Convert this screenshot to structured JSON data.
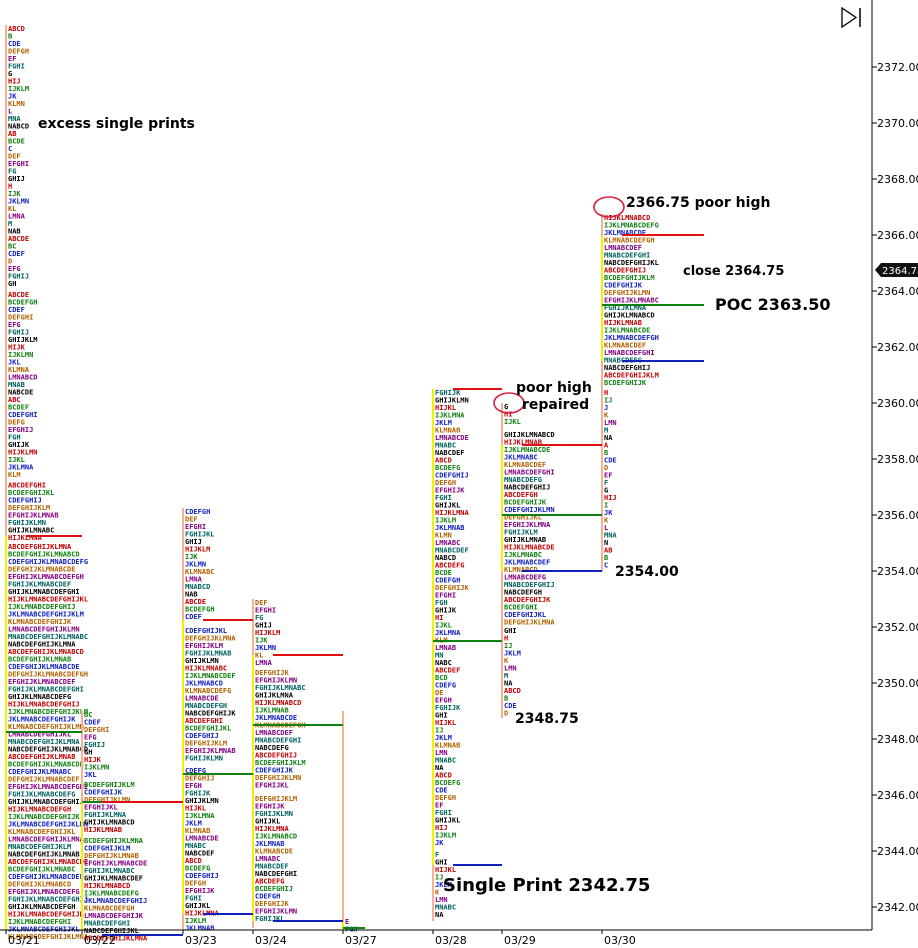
{
  "chart_data": {
    "type": "market-profile",
    "title": "",
    "xlabel": "",
    "ylabel": "",
    "ylim": [
      2340.7,
      2373.5
    ],
    "y_ticks": [
      2342,
      2344,
      2346,
      2348,
      2350,
      2352,
      2354,
      2356,
      2358,
      2360,
      2362,
      2364,
      2366,
      2368,
      2370,
      2372
    ],
    "y_tick_labels": [
      "2342.00",
      "2344.00",
      "2346.00",
      "2348.00",
      "2350.00",
      "2352.00",
      "2354.00",
      "2356.00",
      "2358.00",
      "2360.00",
      "2362.00",
      "2364.00",
      "2366.00",
      "2368.00",
      "2370.00",
      "2372.00"
    ],
    "current_price": 2364.75,
    "current_price_label": "2364.75",
    "dates": [
      "03/21",
      "03/22",
      "03/23",
      "03/24",
      "03/27",
      "03/28",
      "03/29",
      "03/30"
    ],
    "colors": {
      "red": "#e01010",
      "blue": "#1020c0",
      "green": "#108010",
      "yellow": "#f5f000",
      "lightgreen": "#90ee90",
      "salmon": "#f8b090",
      "annot_circle": "#d81e3c"
    },
    "sessions": [
      {
        "date": "03/21",
        "low": 2341.0,
        "high": 2373.5,
        "poc": 2348.25,
        "va_high": 2355.25,
        "va_low": 2340.7,
        "hist": [
          {
            "y0": 2340.7,
            "y1": 2355.0,
            "w": 95
          },
          {
            "y0": 2355.0,
            "y1": 2357.2,
            "w": 60
          },
          {
            "y0": 2357.2,
            "y1": 2364.0,
            "w": 30
          },
          {
            "y0": 2364.0,
            "y1": 2373.5,
            "w": 18
          }
        ]
      },
      {
        "date": "03/22",
        "low": 2340.7,
        "high": 2349.0,
        "poc": 2345.75,
        "va_high": 2345.75,
        "va_low": 2340.7,
        "hist": [
          {
            "y0": 2340.7,
            "y1": 2344.5,
            "w": 75
          },
          {
            "y0": 2344.5,
            "y1": 2346.5,
            "w": 60
          },
          {
            "y0": 2346.5,
            "y1": 2349.0,
            "w": 25
          }
        ]
      },
      {
        "date": "03/23",
        "low": 2341.0,
        "high": 2356.25,
        "poc": 2346.75,
        "va_high": 2352.25,
        "va_low": 2341.75,
        "hist": [
          {
            "y0": 2341.0,
            "y1": 2347.0,
            "w": 35
          },
          {
            "y0": 2347.0,
            "y1": 2352.0,
            "w": 55
          },
          {
            "y0": 2352.0,
            "y1": 2356.25,
            "w": 30
          }
        ]
      },
      {
        "date": "03/24",
        "low": 2341.25,
        "high": 2353.0,
        "poc": 2348.5,
        "va_high": 2351.0,
        "va_low": 2341.5,
        "hist": [
          {
            "y0": 2341.25,
            "y1": 2346.0,
            "w": 45
          },
          {
            "y0": 2346.0,
            "y1": 2350.5,
            "w": 55
          },
          {
            "y0": 2350.5,
            "y1": 2353.0,
            "w": 25
          }
        ]
      },
      {
        "date": "03/27",
        "low": 2341.0,
        "high": 2349.0,
        "poc": 2341.25,
        "va_high": 2341.5,
        "va_low": 2341.0,
        "hist": [
          {
            "y0": 2341.0,
            "y1": 2341.6,
            "w": 8
          }
        ]
      },
      {
        "date": "03/28",
        "low": 2341.5,
        "high": 2360.5,
        "poc": 2351.5,
        "va_high": 2360.5,
        "va_low": 2343.5,
        "hist": [
          {
            "y0": 2341.5,
            "y1": 2344.0,
            "w": 18
          },
          {
            "y0": 2344.0,
            "y1": 2353.0,
            "w": 22
          },
          {
            "y0": 2353.0,
            "y1": 2360.5,
            "w": 35
          }
        ]
      },
      {
        "date": "03/29",
        "low": 2348.75,
        "high": 2360.0,
        "poc": 2356.0,
        "va_high": 2358.5,
        "va_low": 2354.0,
        "hist": [
          {
            "y0": 2348.75,
            "y1": 2352.0,
            "w": 14
          },
          {
            "y0": 2352.0,
            "y1": 2359.0,
            "w": 55
          },
          {
            "y0": 2359.0,
            "y1": 2360.0,
            "w": 15
          }
        ]
      },
      {
        "date": "03/30",
        "low": 2354.0,
        "high": 2366.75,
        "poc": 2363.5,
        "va_high": 2366.0,
        "va_low": 2361.5,
        "hist": [
          {
            "y0": 2354.0,
            "y1": 2360.5,
            "w": 10
          },
          {
            "y0": 2360.5,
            "y1": 2366.75,
            "w": 65
          }
        ]
      }
    ],
    "annotations": [
      {
        "text": "excess single prints",
        "price": 2370.0,
        "date": "03/21",
        "bold": true
      },
      {
        "text": "2366.75 poor high",
        "price": 2367.0,
        "date": "03/30"
      },
      {
        "text": "close 2364.75",
        "price": 2364.75,
        "date": "03/30"
      },
      {
        "text": "POC 2363.50",
        "price": 2363.5,
        "date": "03/30"
      },
      {
        "text": "poor high",
        "price": 2360.5,
        "date": "03/29"
      },
      {
        "text": "repaired",
        "price": 2359.9,
        "date": "03/29"
      },
      {
        "text": "2354.00",
        "price": 2354.0,
        "date": "03/30"
      },
      {
        "text": "2348.75",
        "price": 2348.75,
        "date": "03/29"
      },
      {
        "text": "Single Print 2342.75",
        "price": 2342.75,
        "date": "03/28"
      }
    ]
  }
}
